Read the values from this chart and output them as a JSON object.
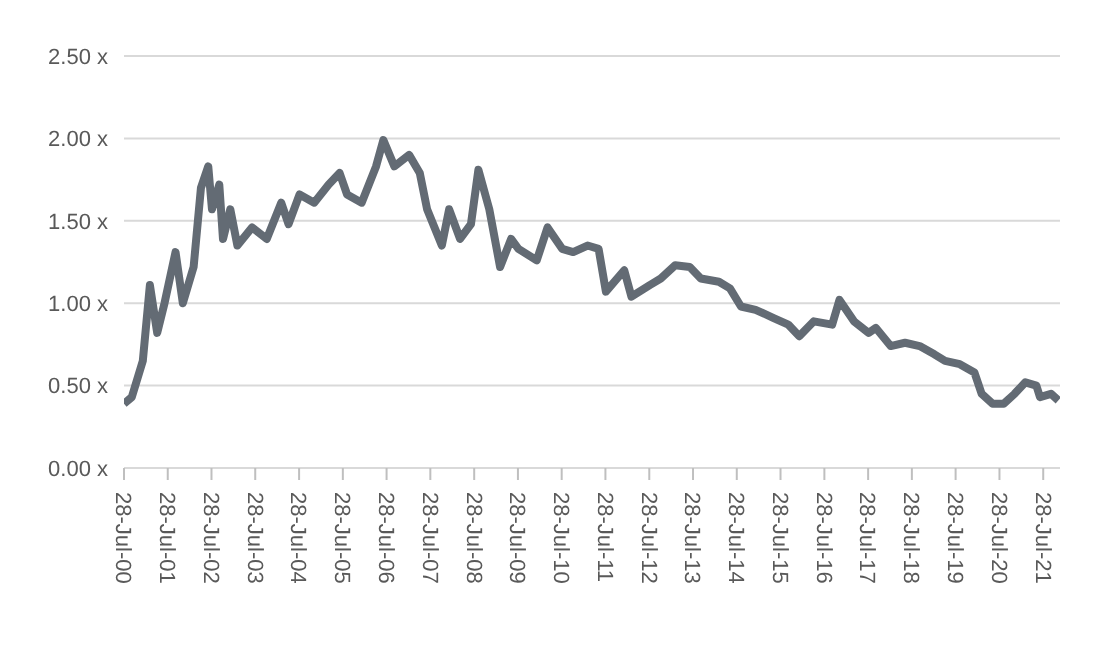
{
  "chart_data": {
    "type": "line",
    "color": "#636b74",
    "grid": "y",
    "xlim": [
      "2000-07-28",
      "2021-12-15"
    ],
    "ylim": [
      0,
      2.5
    ],
    "yticks": [
      {
        "value": 0,
        "label": "0.00 x"
      },
      {
        "value": 0.5,
        "label": "0.50 x"
      },
      {
        "value": 1,
        "label": "1.00 x"
      },
      {
        "value": 1.5,
        "label": "1.50 x"
      },
      {
        "value": 2,
        "label": "2.00 x"
      },
      {
        "value": 2.5,
        "label": "2.50 x"
      }
    ],
    "xticks": [
      {
        "value": "2000-07-28",
        "label": "28-Jul-00"
      },
      {
        "value": "2001-07-28",
        "label": "28-Jul-01"
      },
      {
        "value": "2002-07-28",
        "label": "28-Jul-02"
      },
      {
        "value": "2003-07-28",
        "label": "28-Jul-03"
      },
      {
        "value": "2004-07-28",
        "label": "28-Jul-04"
      },
      {
        "value": "2005-07-28",
        "label": "28-Jul-05"
      },
      {
        "value": "2006-07-28",
        "label": "28-Jul-06"
      },
      {
        "value": "2007-07-28",
        "label": "28-Jul-07"
      },
      {
        "value": "2008-07-28",
        "label": "28-Jul-08"
      },
      {
        "value": "2009-07-28",
        "label": "28-Jul-09"
      },
      {
        "value": "2010-07-28",
        "label": "28-Jul-10"
      },
      {
        "value": "2011-07-28",
        "label": "28-Jul-11"
      },
      {
        "value": "2012-07-28",
        "label": "28-Jul-12"
      },
      {
        "value": "2013-07-28",
        "label": "28-Jul-13"
      },
      {
        "value": "2014-07-28",
        "label": "28-Jul-14"
      },
      {
        "value": "2015-07-28",
        "label": "28-Jul-15"
      },
      {
        "value": "2016-07-28",
        "label": "28-Jul-16"
      },
      {
        "value": "2017-07-28",
        "label": "28-Jul-17"
      },
      {
        "value": "2018-07-28",
        "label": "28-Jul-18"
      },
      {
        "value": "2019-07-28",
        "label": "28-Jul-19"
      },
      {
        "value": "2020-07-28",
        "label": "28-Jul-20"
      },
      {
        "value": "2021-07-28",
        "label": "28-Jul-21"
      }
    ],
    "x": [
      "2000-07-28",
      "2000-10",
      "2001-01",
      "2001-03",
      "2001-05",
      "2001-07",
      "2001-10",
      "2001-12",
      "2002-03",
      "2002-05",
      "2002-07",
      "2002-08",
      "2002-10",
      "2002-11",
      "2003-01",
      "2003-03",
      "2003-07",
      "2003-11",
      "2004-03",
      "2004-05",
      "2004-08",
      "2004-12",
      "2005-04",
      "2005-07",
      "2005-09",
      "2006-01",
      "2006-05",
      "2006-07",
      "2006-10",
      "2007-02",
      "2007-05",
      "2007-07",
      "2007-11",
      "2008-01",
      "2008-04",
      "2008-07",
      "2008-09",
      "2008-12",
      "2009-03",
      "2009-06",
      "2009-08",
      "2010-01",
      "2010-04",
      "2010-08",
      "2010-11",
      "2011-03",
      "2011-06",
      "2011-08",
      "2012-01",
      "2012-03",
      "2012-08",
      "2012-11",
      "2013-03",
      "2013-07",
      "2013-10",
      "2014-03",
      "2014-06",
      "2014-09",
      "2015-01",
      "2015-06",
      "2015-10",
      "2016-01",
      "2016-05",
      "2016-10",
      "2016-12",
      "2017-04",
      "2017-08",
      "2017-10",
      "2018-02",
      "2018-06",
      "2018-10",
      "2019-02",
      "2019-05",
      "2019-09",
      "2020-01",
      "2020-03",
      "2020-06",
      "2020-09",
      "2020-12",
      "2021-03",
      "2021-06",
      "2021-07",
      "2021-10",
      "2021-12"
    ],
    "values": [
      0.39,
      0.43,
      0.65,
      1.11,
      0.82,
      1.0,
      1.31,
      1.0,
      1.22,
      1.7,
      1.83,
      1.57,
      1.72,
      1.39,
      1.57,
      1.35,
      1.46,
      1.39,
      1.61,
      1.48,
      1.66,
      1.61,
      1.72,
      1.79,
      1.66,
      1.61,
      1.83,
      1.99,
      1.83,
      1.9,
      1.79,
      1.57,
      1.35,
      1.57,
      1.39,
      1.48,
      1.81,
      1.57,
      1.22,
      1.39,
      1.33,
      1.26,
      1.46,
      1.33,
      1.31,
      1.35,
      1.33,
      1.07,
      1.2,
      1.04,
      1.11,
      1.15,
      1.23,
      1.22,
      1.15,
      1.13,
      1.09,
      0.98,
      0.96,
      0.91,
      0.87,
      0.8,
      0.89,
      0.87,
      1.02,
      0.89,
      0.82,
      0.85,
      0.74,
      0.76,
      0.74,
      0.69,
      0.65,
      0.63,
      0.58,
      0.45,
      0.39,
      0.39,
      0.45,
      0.52,
      0.5,
      0.43,
      0.45,
      0.41
    ]
  }
}
